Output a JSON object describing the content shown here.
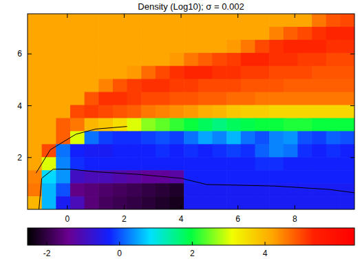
{
  "chart_data": {
    "type": "heatmap",
    "title": "Density (Log10); σ = 0.002",
    "xlim": [
      -1.4,
      10.1
    ],
    "ylim": [
      0,
      7.55
    ],
    "xticks": [
      0,
      2,
      4,
      6,
      8
    ],
    "yticks": [
      2,
      4,
      6
    ],
    "cells": [
      [
        4.2,
        4.2,
        4.2,
        4.2,
        4.2,
        4.2,
        4.2,
        4.2,
        4.2,
        4.2,
        4.2,
        4.2,
        4.2,
        4.2,
        4.2,
        4.2,
        4.2,
        4.2,
        4.2,
        4.2,
        4.6,
        4.9,
        5.0
      ],
      [
        4.2,
        4.2,
        4.2,
        4.2,
        4.2,
        4.2,
        4.2,
        4.2,
        4.2,
        4.2,
        4.2,
        4.2,
        4.2,
        4.2,
        4.2,
        4.2,
        4.2,
        4.5,
        4.8,
        5.0,
        5.2,
        5.3,
        5.3
      ],
      [
        4.2,
        4.2,
        4.2,
        4.2,
        4.2,
        4.2,
        4.2,
        4.2,
        4.2,
        4.2,
        4.2,
        4.2,
        4.2,
        4.2,
        4.3,
        4.6,
        5.0,
        5.2,
        5.3,
        5.3,
        5.3,
        5.2,
        5.2
      ],
      [
        4.2,
        4.2,
        4.2,
        4.2,
        4.2,
        4.2,
        4.2,
        4.2,
        4.2,
        4.2,
        4.3,
        4.6,
        4.8,
        5.0,
        5.1,
        5.3,
        5.3,
        5.2,
        5.2,
        5.1,
        5.1,
        5.0,
        5.0
      ],
      [
        4.2,
        4.2,
        4.2,
        4.2,
        4.2,
        4.2,
        4.2,
        4.3,
        4.7,
        5.0,
        5.2,
        5.3,
        5.3,
        5.2,
        5.2,
        5.1,
        5.1,
        5.0,
        5.0,
        5.0,
        4.9,
        4.9,
        4.9
      ],
      [
        4.2,
        4.2,
        4.2,
        4.2,
        4.2,
        4.5,
        4.9,
        5.1,
        5.2,
        5.2,
        5.1,
        5.1,
        5.0,
        5.0,
        5.0,
        4.9,
        4.9,
        4.9,
        4.8,
        4.8,
        4.8,
        4.8,
        4.8
      ],
      [
        4.2,
        4.2,
        4.2,
        4.2,
        4.9,
        5.2,
        5.2,
        5.1,
        5.0,
        5.0,
        4.9,
        4.9,
        4.8,
        4.8,
        4.7,
        4.7,
        4.6,
        4.6,
        4.6,
        4.6,
        4.6,
        4.6,
        4.6
      ],
      [
        4.2,
        4.2,
        4.2,
        5.0,
        5.1,
        5.0,
        4.9,
        4.8,
        4.6,
        4.5,
        4.4,
        4.3,
        4.1,
        4.0,
        3.8,
        3.7,
        3.7,
        3.6,
        3.6,
        3.6,
        3.6,
        3.6,
        3.6
      ],
      [
        4.2,
        4.2,
        4.8,
        4.6,
        4.0,
        3.8,
        3.5,
        3.0,
        2.6,
        2.4,
        2.2,
        2.0,
        1.8,
        1.6,
        1.8,
        1.9,
        2.0,
        2.0,
        2.1,
        2.1,
        2.0,
        2.0,
        2.0
      ],
      [
        4.2,
        4.2,
        4.8,
        3.0,
        0.2,
        -0.1,
        -0.2,
        -0.2,
        -0.1,
        0.0,
        -0.1,
        0.2,
        0.5,
        0.3,
        0.6,
        0.2,
        0.0,
        0.3,
        0.4,
        0.0,
        -0.1,
        0.1,
        0.0
      ],
      [
        4.2,
        5.0,
        0.2,
        -0.3,
        -0.4,
        -0.4,
        -0.3,
        -0.3,
        -0.3,
        -0.2,
        -0.3,
        -0.2,
        -0.3,
        -0.2,
        -0.1,
        -0.2,
        0.1,
        0.3,
        0.2,
        -0.2,
        -0.3,
        -0.2,
        -0.3
      ],
      [
        4.2,
        3.0,
        0.3,
        -0.2,
        -0.3,
        -0.3,
        -0.3,
        -0.3,
        -0.3,
        -0.3,
        -0.3,
        -0.3,
        -0.3,
        -0.3,
        -0.3,
        -0.3,
        -0.2,
        -0.2,
        -0.3,
        -0.3,
        -0.3,
        -0.3,
        -0.3
      ],
      [
        4.5,
        0.8,
        0.4,
        -0.9,
        -1.0,
        -1.0,
        -1.1,
        -1.2,
        -1.3,
        -1.3,
        -1.2,
        -0.3,
        -0.3,
        -0.3,
        -0.3,
        -0.3,
        -0.3,
        -0.3,
        -0.3,
        -0.3,
        -0.3,
        -0.3,
        -0.3
      ],
      [
        4.6,
        0.6,
        0.0,
        -1.5,
        -1.6,
        -1.7,
        -1.8,
        -1.9,
        -2.0,
        -2.1,
        -2.2,
        -0.4,
        -0.4,
        -0.4,
        -0.4,
        -0.4,
        -0.4,
        -0.4,
        -0.4,
        -0.4,
        -0.4,
        -0.4,
        -0.4
      ],
      [
        4.0,
        0.6,
        -0.4,
        -1.0,
        -1.6,
        -1.8,
        -1.9,
        -2.0,
        -2.1,
        -2.2,
        -2.3,
        -0.4,
        -0.4,
        -0.4,
        -0.4,
        -0.4,
        -0.4,
        -0.4,
        -0.4,
        -0.4,
        -0.4,
        -0.4,
        -0.4
      ]
    ],
    "colorbar": {
      "range": [
        -2.53,
        6.46
      ],
      "ticks": [
        -2,
        0,
        2,
        4
      ],
      "colors": [
        "#000000",
        "#6a0090",
        "#1020ff",
        "#00e0ff",
        "#00ff40",
        "#f0ff00",
        "#ffa500",
        "#ff2000",
        "#ff0000"
      ]
    },
    "contours": [
      {
        "color": "#000000",
        "x": [
          -1.0,
          -0.9,
          -0.5,
          0.1,
          1.0,
          2.5,
          4.0,
          4.9,
          7.3,
          9.2,
          10.1
        ],
        "y": [
          0,
          1.2,
          1.55,
          1.55,
          1.45,
          1.35,
          1.2,
          0.96,
          0.9,
          0.77,
          0.64
        ]
      },
      {
        "color": "#000000",
        "x": [
          -1.1,
          -0.6,
          0.3,
          1.0,
          2.1
        ],
        "y": [
          1.4,
          2.3,
          2.9,
          3.1,
          3.2
        ]
      }
    ]
  }
}
